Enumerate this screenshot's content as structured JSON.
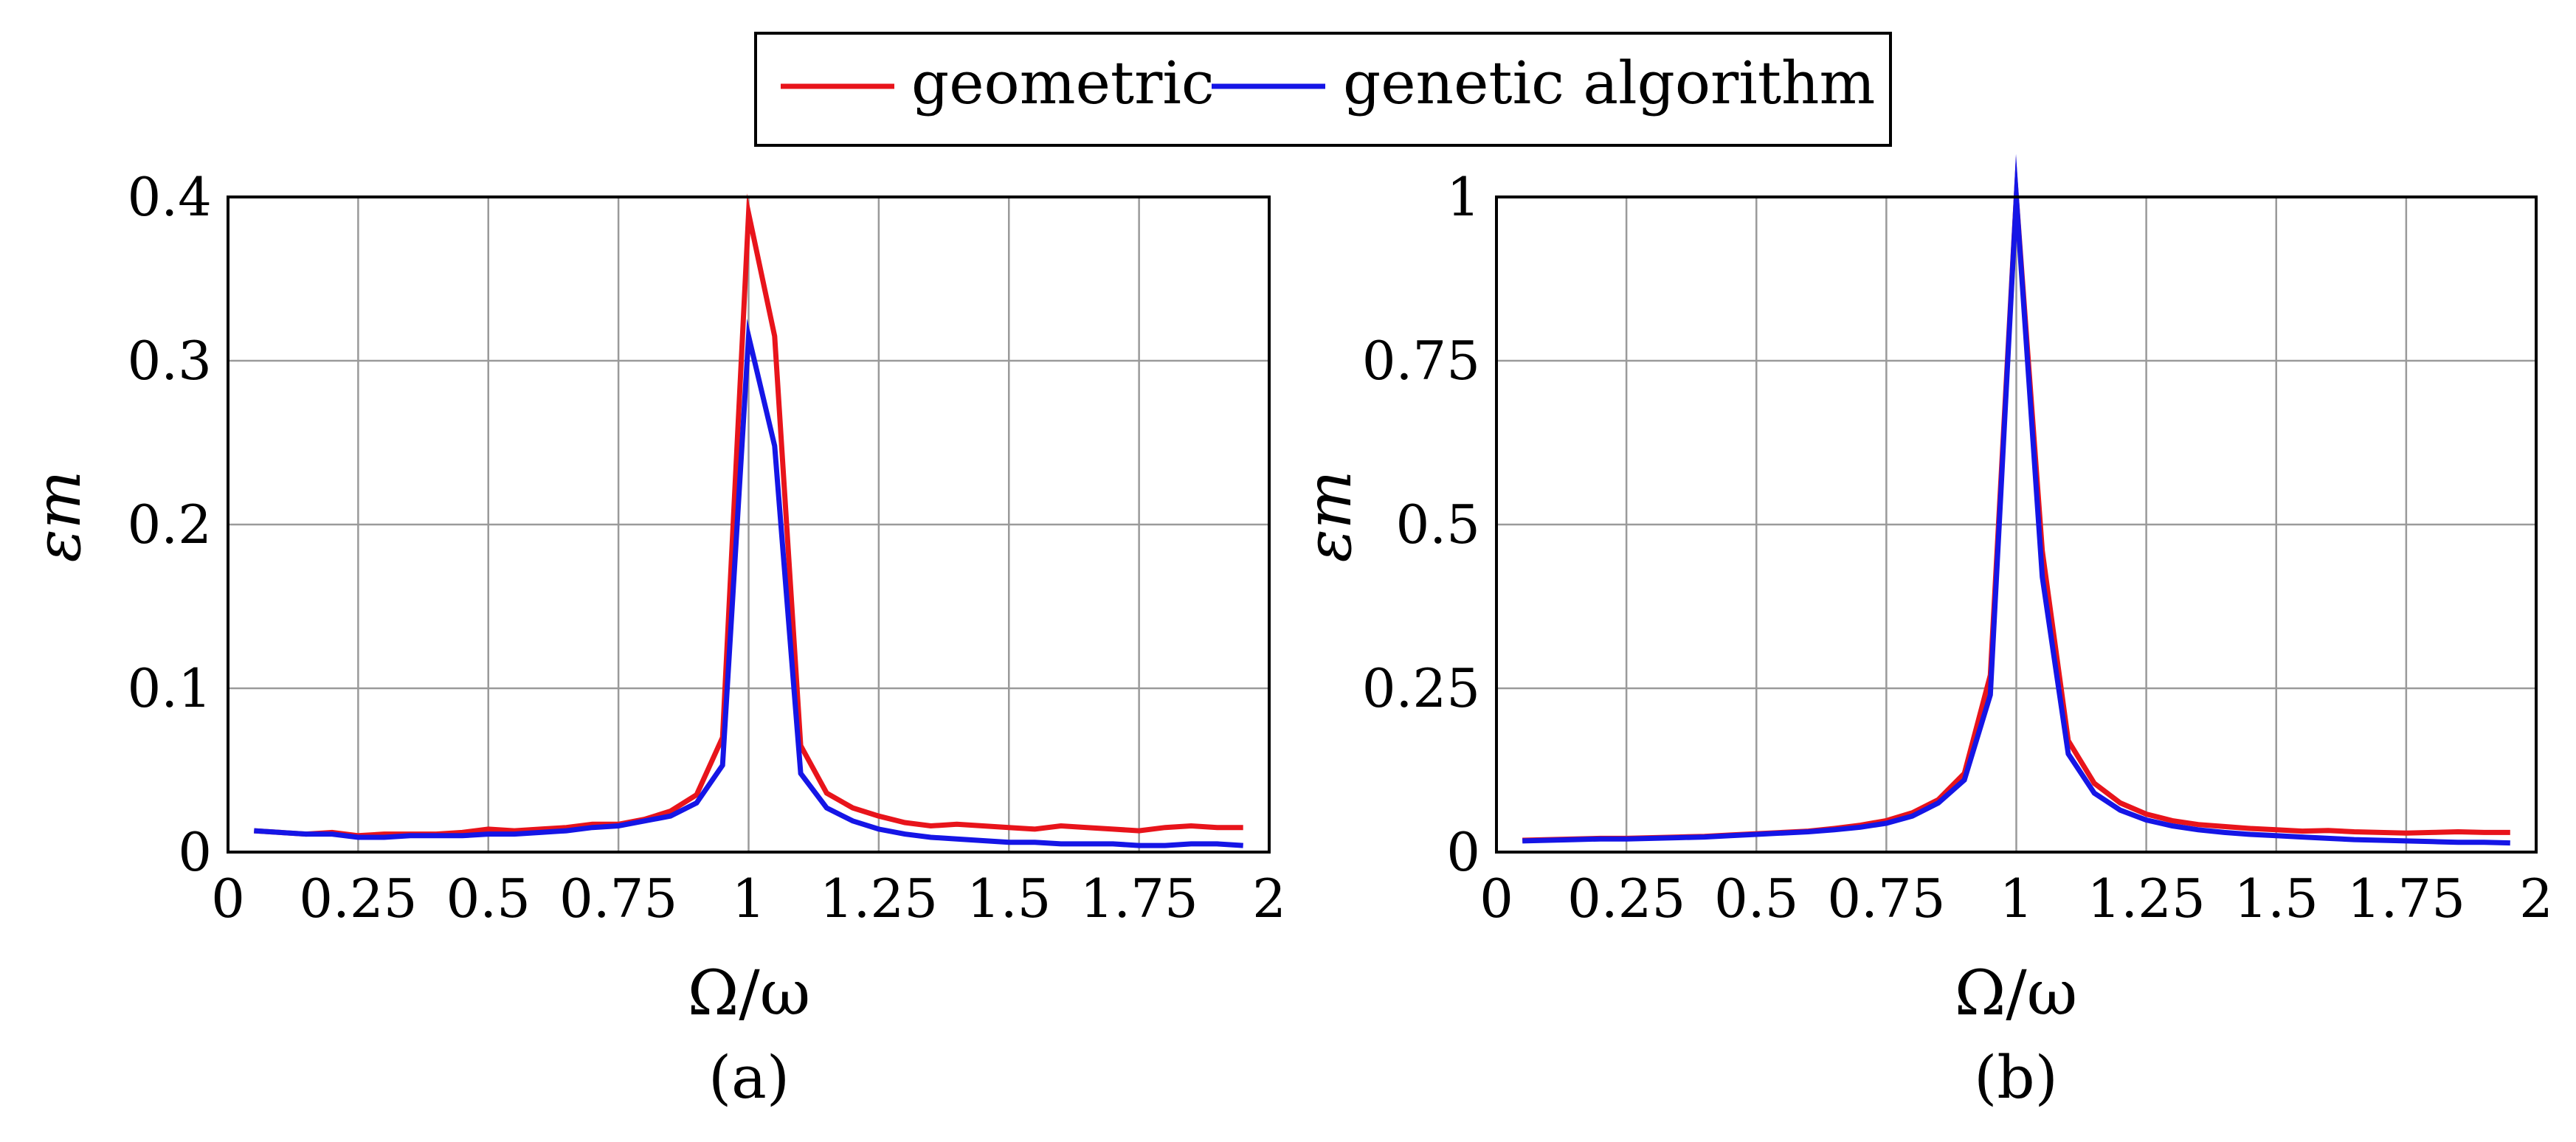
{
  "legend": {
    "items": [
      {
        "label": "geometric",
        "color": "#e8141b"
      },
      {
        "label": "genetic algorithm",
        "color": "#1515e6"
      }
    ]
  },
  "chart_data": [
    {
      "type": "line",
      "caption": "(a)",
      "xlabel": "Ω/ω",
      "ylabel": "εm",
      "xlim": [
        0,
        2
      ],
      "ylim": [
        0,
        0.4
      ],
      "xticks": [
        "0",
        "0.25",
        "0.5",
        "0.75",
        "1",
        "1.25",
        "1.5",
        "1.75",
        "2"
      ],
      "xtick_values": [
        0,
        0.25,
        0.5,
        0.75,
        1,
        1.25,
        1.5,
        1.75,
        2
      ],
      "yticks": [
        "0",
        "0.1",
        "0.2",
        "0.3",
        "0.4"
      ],
      "ytick_values": [
        0,
        0.1,
        0.2,
        0.3,
        0.4
      ],
      "grid": true,
      "x": [
        0.05,
        0.1,
        0.15,
        0.2,
        0.25,
        0.3,
        0.35,
        0.4,
        0.45,
        0.5,
        0.55,
        0.6,
        0.65,
        0.7,
        0.75,
        0.8,
        0.85,
        0.9,
        0.95,
        1.0,
        1.05,
        1.1,
        1.15,
        1.2,
        1.25,
        1.3,
        1.35,
        1.4,
        1.45,
        1.5,
        1.55,
        1.6,
        1.65,
        1.7,
        1.75,
        1.8,
        1.85,
        1.9,
        1.95
      ],
      "series": [
        {
          "name": "geometric",
          "color": "#e8141b",
          "values": [
            0.013,
            0.012,
            0.011,
            0.012,
            0.01,
            0.011,
            0.011,
            0.011,
            0.012,
            0.014,
            0.013,
            0.014,
            0.015,
            0.017,
            0.017,
            0.02,
            0.025,
            0.035,
            0.07,
            0.39,
            0.315,
            0.065,
            0.036,
            0.027,
            0.022,
            0.018,
            0.016,
            0.017,
            0.016,
            0.015,
            0.014,
            0.016,
            0.015,
            0.014,
            0.013,
            0.015,
            0.016,
            0.015,
            0.015
          ]
        },
        {
          "name": "genetic algorithm",
          "color": "#1515e6",
          "values": [
            0.013,
            0.012,
            0.011,
            0.011,
            0.009,
            0.009,
            0.01,
            0.01,
            0.01,
            0.011,
            0.011,
            0.012,
            0.013,
            0.015,
            0.016,
            0.019,
            0.022,
            0.03,
            0.053,
            0.315,
            0.248,
            0.048,
            0.027,
            0.019,
            0.014,
            0.011,
            0.009,
            0.008,
            0.007,
            0.006,
            0.006,
            0.005,
            0.005,
            0.005,
            0.004,
            0.004,
            0.005,
            0.005,
            0.004
          ]
        }
      ]
    },
    {
      "type": "line",
      "caption": "(b)",
      "xlabel": "Ω/ω",
      "ylabel": "εm",
      "xlim": [
        0,
        2
      ],
      "ylim": [
        0,
        1
      ],
      "xticks": [
        "0",
        "0.25",
        "0.5",
        "0.75",
        "1",
        "1.25",
        "1.5",
        "1.75",
        "2"
      ],
      "xtick_values": [
        0,
        0.25,
        0.5,
        0.75,
        1,
        1.25,
        1.5,
        1.75,
        2
      ],
      "yticks": [
        "0",
        "0.25",
        "0.5",
        "0.75",
        "1"
      ],
      "ytick_values": [
        0,
        0.25,
        0.5,
        0.75,
        1
      ],
      "grid": true,
      "x": [
        0.05,
        0.1,
        0.15,
        0.2,
        0.25,
        0.3,
        0.35,
        0.4,
        0.45,
        0.5,
        0.55,
        0.6,
        0.65,
        0.7,
        0.75,
        0.8,
        0.85,
        0.9,
        0.95,
        1.0,
        1.05,
        1.1,
        1.15,
        1.2,
        1.25,
        1.3,
        1.35,
        1.4,
        1.45,
        1.5,
        1.55,
        1.6,
        1.65,
        1.7,
        1.75,
        1.8,
        1.85,
        1.9,
        1.95
      ],
      "series": [
        {
          "name": "geometric",
          "color": "#e8141b",
          "values": [
            0.018,
            0.019,
            0.02,
            0.021,
            0.021,
            0.022,
            0.023,
            0.024,
            0.026,
            0.028,
            0.03,
            0.032,
            0.036,
            0.041,
            0.048,
            0.06,
            0.08,
            0.12,
            0.27,
            1.0,
            0.46,
            0.17,
            0.105,
            0.075,
            0.058,
            0.048,
            0.042,
            0.039,
            0.036,
            0.034,
            0.032,
            0.033,
            0.031,
            0.03,
            0.029,
            0.03,
            0.031,
            0.03,
            0.03
          ]
        },
        {
          "name": "genetic algorithm",
          "color": "#1515e6",
          "values": [
            0.017,
            0.018,
            0.019,
            0.02,
            0.02,
            0.021,
            0.022,
            0.023,
            0.025,
            0.027,
            0.029,
            0.031,
            0.034,
            0.038,
            0.044,
            0.055,
            0.075,
            0.11,
            0.24,
            1.0,
            0.42,
            0.15,
            0.09,
            0.064,
            0.049,
            0.04,
            0.034,
            0.03,
            0.027,
            0.025,
            0.023,
            0.021,
            0.019,
            0.018,
            0.017,
            0.016,
            0.015,
            0.015,
            0.014
          ]
        }
      ]
    }
  ]
}
